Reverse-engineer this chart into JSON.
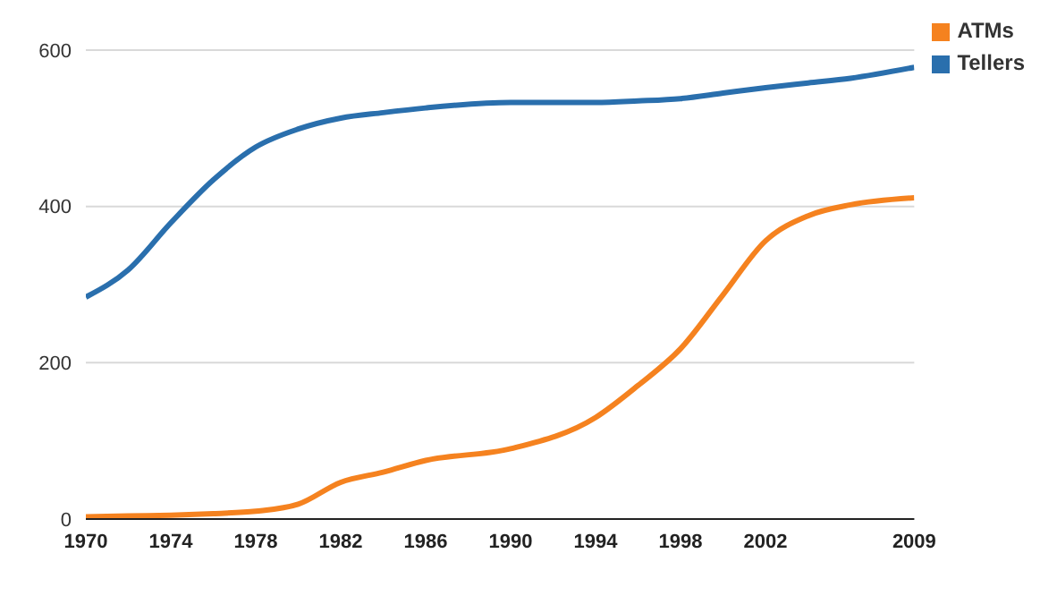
{
  "chart_data": {
    "type": "line",
    "x": [
      1970,
      1972,
      1974,
      1976,
      1978,
      1980,
      1982,
      1984,
      1986,
      1990,
      1994,
      1996,
      1998,
      2000,
      2002,
      2004,
      2006,
      2009
    ],
    "series": [
      {
        "name": "Tellers",
        "color": "#2a6fad",
        "values": [
          284,
          319,
          379,
          434,
          476,
          499,
          513,
          520,
          526,
          533,
          533,
          535,
          538,
          545,
          552,
          558,
          564,
          578
        ]
      },
      {
        "name": "ATMs",
        "color": "#f5821f",
        "values": [
          3,
          4,
          5,
          7,
          10,
          19,
          47,
          60,
          75,
          90,
          130,
          171,
          218,
          287,
          356,
          388,
          402,
          411
        ]
      }
    ],
    "xlim": [
      1970,
      2009
    ],
    "xticks": [
      1970,
      1974,
      1978,
      1982,
      1986,
      1990,
      1994,
      1998,
      2002,
      2009
    ],
    "ylim": [
      0,
      600
    ],
    "yticks": [
      0,
      200,
      400,
      600
    ],
    "grid": "y",
    "legend": "top right",
    "marker": "none",
    "line_style": "solid"
  }
}
